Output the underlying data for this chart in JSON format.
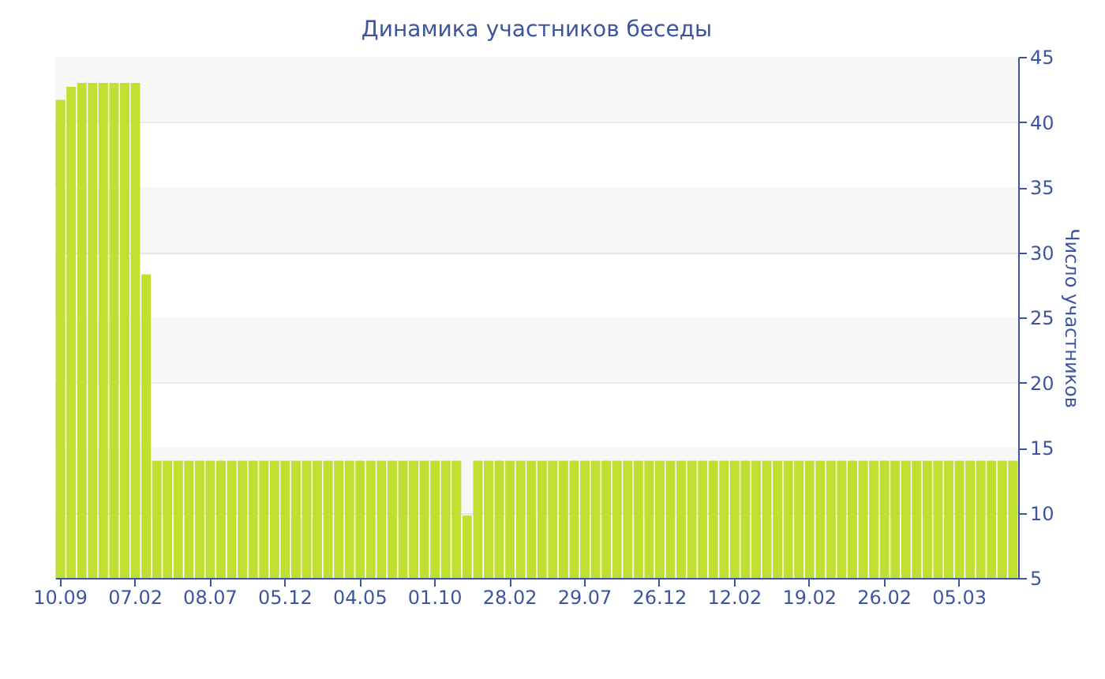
{
  "chart_data": {
    "type": "bar",
    "title": "Динамика участников беседы",
    "ylabel": "Число участников",
    "categories": [
      "10.09",
      null,
      null,
      null,
      null,
      null,
      null,
      "07.02",
      null,
      null,
      null,
      null,
      null,
      null,
      "08.07",
      null,
      null,
      null,
      null,
      null,
      null,
      "05.12",
      null,
      null,
      null,
      null,
      null,
      null,
      "04.05",
      null,
      null,
      null,
      null,
      null,
      null,
      "01.10",
      null,
      null,
      null,
      null,
      null,
      null,
      "28.02",
      null,
      null,
      null,
      null,
      null,
      null,
      "29.07",
      null,
      null,
      null,
      null,
      null,
      null,
      "26.12",
      null,
      null,
      null,
      null,
      null,
      null,
      "12.02",
      null,
      null,
      null,
      null,
      null,
      null,
      "19.02",
      null,
      null,
      null,
      null,
      null,
      null,
      "26.02",
      null,
      null,
      null,
      null,
      null,
      null,
      "05.03",
      null,
      null,
      null,
      null,
      null
    ],
    "values": [
      41.7,
      42.7,
      43,
      43,
      43,
      43,
      43,
      43,
      28.3,
      14,
      14,
      14,
      14,
      14,
      14,
      14,
      14,
      14,
      14,
      14,
      14,
      14,
      14,
      14,
      14,
      14,
      14,
      14,
      14,
      14,
      14,
      14,
      14,
      14,
      14,
      14,
      14,
      14,
      9.8,
      14,
      14,
      14,
      14,
      14,
      14,
      14,
      14,
      14,
      14,
      14,
      14,
      14,
      14,
      14,
      14,
      14,
      14,
      14,
      14,
      14,
      14,
      14,
      14,
      14,
      14,
      14,
      14,
      14,
      14,
      14,
      14,
      14,
      14,
      14,
      14,
      14,
      14,
      14,
      14,
      14,
      14,
      14,
      14,
      14,
      14,
      14,
      14,
      14,
      14,
      14
    ],
    "color": "#bfe030",
    "ylim": [
      5,
      45
    ],
    "yticks": [
      5,
      10,
      15,
      20,
      25,
      30,
      35,
      40,
      45
    ],
    "grid": "y"
  }
}
